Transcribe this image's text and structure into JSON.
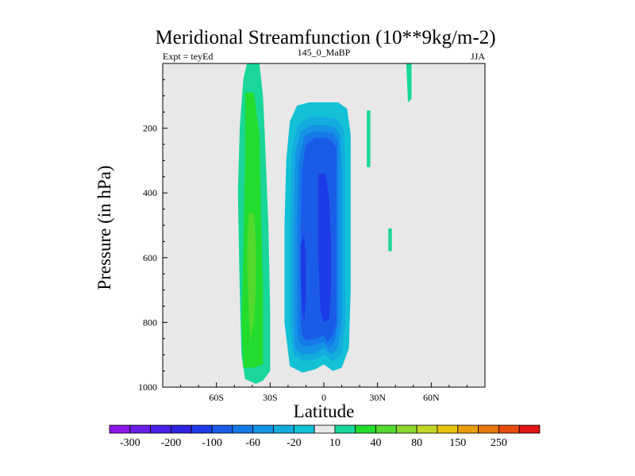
{
  "chart_data": {
    "type": "heatmap",
    "title": "Meridional Streamfunction (10**9kg/m-2)",
    "subtitle_left": "Expt = teyEd",
    "subtitle_center": "145_0_MaBP",
    "subtitle_right": "JJA",
    "xlabel": "Latitude",
    "ylabel": "Pressure (in hPa)",
    "xlim": [
      -90,
      90
    ],
    "ylim": [
      1000,
      0
    ],
    "x_ticks": [
      {
        "value": -60,
        "label": "60S"
      },
      {
        "value": -30,
        "label": "30S"
      },
      {
        "value": 0,
        "label": "0"
      },
      {
        "value": 30,
        "label": "30N"
      },
      {
        "value": 60,
        "label": "60N"
      }
    ],
    "y_ticks": [
      {
        "value": 200,
        "label": "200"
      },
      {
        "value": 400,
        "label": "400"
      },
      {
        "value": 600,
        "label": "600"
      },
      {
        "value": 800,
        "label": "800"
      },
      {
        "value": 1000,
        "label": "1000"
      }
    ],
    "background_color": "#e8e8e8",
    "colorbar": {
      "levels": [
        -350,
        -300,
        -250,
        -200,
        -150,
        -100,
        -80,
        -60,
        -40,
        -20,
        -10,
        10,
        20,
        40,
        60,
        80,
        100,
        150,
        200,
        250,
        300
      ],
      "colors": [
        "#8c17e8",
        "#6a1ee8",
        "#4a1fe6",
        "#2d22e0",
        "#1c3ae6",
        "#1a5ce8",
        "#1679e8",
        "#1493e6",
        "#13acdf",
        "#12c1d6",
        "#e8e8e8",
        "#19d69a",
        "#23dc2e",
        "#54d92e",
        "#8cd62f",
        "#c3d626",
        "#e6c40e",
        "#e89d0c",
        "#e8780c",
        "#e64c0f",
        "#e01414"
      ],
      "labels": [
        {
          "value": -300,
          "label": "-300"
        },
        {
          "value": -200,
          "label": "-200"
        },
        {
          "value": -100,
          "label": "-100"
        },
        {
          "value": -60,
          "label": "-60"
        },
        {
          "value": -20,
          "label": "-20"
        },
        {
          "value": 10,
          "label": "10"
        },
        {
          "value": 40,
          "label": "40"
        },
        {
          "value": 80,
          "label": "80"
        },
        {
          "value": 150,
          "label": "150"
        },
        {
          "value": 250,
          "label": "250"
        }
      ]
    },
    "cells": [
      {
        "name": "sh-cell-10",
        "color_level": 10,
        "points": [
          [
            -43,
            0
          ],
          [
            -36,
            0
          ],
          [
            -34,
            100
          ],
          [
            -33,
            220
          ],
          [
            -31,
            500
          ],
          [
            -30,
            750
          ],
          [
            -30,
            950
          ],
          [
            -34,
            980
          ],
          [
            -38,
            990
          ],
          [
            -44,
            975
          ],
          [
            -46,
            900
          ],
          [
            -47,
            700
          ],
          [
            -48,
            400
          ],
          [
            -47,
            200
          ],
          [
            -45,
            50
          ]
        ]
      },
      {
        "name": "sh-cell-20",
        "color_level": 20,
        "points": [
          [
            -44,
            90
          ],
          [
            -39,
            90
          ],
          [
            -36,
            220
          ],
          [
            -35,
            500
          ],
          [
            -34,
            700
          ],
          [
            -34,
            930
          ],
          [
            -39,
            940
          ],
          [
            -45,
            940
          ],
          [
            -46,
            800
          ],
          [
            -45,
            600
          ],
          [
            -44,
            300
          ]
        ]
      },
      {
        "name": "sh-cell-40",
        "color_level": 40,
        "points": [
          [
            -42,
            460
          ],
          [
            -39,
            465
          ],
          [
            -38,
            560
          ],
          [
            -38,
            690
          ],
          [
            -39,
            795
          ],
          [
            -41,
            860
          ],
          [
            -42,
            770
          ],
          [
            -43,
            600
          ]
        ]
      },
      {
        "name": "ncell-m10",
        "color_level": -10,
        "points": [
          [
            -28,
            950
          ],
          [
            -28,
            700
          ],
          [
            -27,
            500
          ],
          [
            -27,
            300
          ],
          [
            -26,
            180
          ],
          [
            -25,
            100
          ],
          [
            -24,
            40
          ],
          [
            -20,
            50
          ],
          [
            -18,
            110
          ],
          [
            -16,
            60
          ],
          [
            -13,
            20
          ],
          [
            -10,
            10
          ],
          [
            -7,
            30
          ],
          [
            -2,
            20
          ],
          [
            0,
            80
          ],
          [
            3,
            60
          ],
          [
            6,
            30
          ],
          [
            10,
            60
          ],
          [
            13,
            20
          ],
          [
            16,
            10
          ],
          [
            18,
            60
          ],
          [
            17,
            200
          ],
          [
            16,
            400
          ],
          [
            16,
            600
          ],
          [
            16,
            800
          ],
          [
            14,
            930
          ],
          [
            10,
            970
          ],
          [
            5,
            980
          ],
          [
            0,
            960
          ],
          [
            -5,
            970
          ],
          [
            -10,
            990
          ],
          [
            -18,
            995
          ],
          [
            -24,
            985
          ]
        ]
      },
      {
        "name": "ncell-m20",
        "color_level": -20,
        "points": [
          [
            -22,
            800
          ],
          [
            -22,
            500
          ],
          [
            -21,
            300
          ],
          [
            -19,
            180
          ],
          [
            -15,
            130
          ],
          [
            -8,
            120
          ],
          [
            0,
            120
          ],
          [
            8,
            120
          ],
          [
            13,
            140
          ],
          [
            15,
            220
          ],
          [
            15,
            500
          ],
          [
            15,
            700
          ],
          [
            14,
            880
          ],
          [
            10,
            940
          ],
          [
            5,
            950
          ],
          [
            0,
            930
          ],
          [
            -5,
            945
          ],
          [
            -12,
            955
          ],
          [
            -19,
            935
          ]
        ]
      },
      {
        "name": "ncell-m40",
        "color_level": -40,
        "points": [
          [
            -19,
            800
          ],
          [
            -19,
            500
          ],
          [
            -18,
            280
          ],
          [
            -15,
            190
          ],
          [
            -8,
            165
          ],
          [
            0,
            165
          ],
          [
            7,
            170
          ],
          [
            11,
            200
          ],
          [
            12,
            300
          ],
          [
            12,
            600
          ],
          [
            12,
            800
          ],
          [
            10,
            900
          ],
          [
            5,
            920
          ],
          [
            0,
            900
          ],
          [
            -5,
            915
          ],
          [
            -12,
            920
          ],
          [
            -17,
            900
          ]
        ]
      },
      {
        "name": "ncell-m60",
        "color_level": -60,
        "points": [
          [
            -17,
            800
          ],
          [
            -17,
            500
          ],
          [
            -16,
            280
          ],
          [
            -13,
            210
          ],
          [
            -7,
            190
          ],
          [
            0,
            190
          ],
          [
            6,
            195
          ],
          [
            9,
            220
          ],
          [
            10,
            320
          ],
          [
            10,
            600
          ],
          [
            10,
            800
          ],
          [
            8,
            880
          ],
          [
            4,
            900
          ],
          [
            0,
            880
          ],
          [
            -5,
            895
          ],
          [
            -12,
            900
          ],
          [
            -16,
            880
          ]
        ]
      },
      {
        "name": "ncell-m80",
        "color_level": -80,
        "points": [
          [
            -15,
            800
          ],
          [
            -15,
            500
          ],
          [
            -14,
            300
          ],
          [
            -11,
            225
          ],
          [
            -6,
            210
          ],
          [
            0,
            210
          ],
          [
            5,
            215
          ],
          [
            8,
            240
          ],
          [
            8,
            350
          ],
          [
            8,
            600
          ],
          [
            8,
            800
          ],
          [
            6,
            860
          ],
          [
            3,
            880
          ],
          [
            0,
            860
          ],
          [
            -5,
            870
          ],
          [
            -11,
            875
          ],
          [
            -14,
            860
          ]
        ]
      },
      {
        "name": "ncell-m100",
        "color_level": -100,
        "points": [
          [
            -13,
            800
          ],
          [
            -13,
            500
          ],
          [
            -12,
            320
          ],
          [
            -10,
            250
          ],
          [
            -5,
            230
          ],
          [
            0,
            230
          ],
          [
            4,
            235
          ],
          [
            7,
            260
          ],
          [
            7,
            400
          ],
          [
            7,
            600
          ],
          [
            7,
            800
          ],
          [
            5,
            840
          ],
          [
            2,
            860
          ],
          [
            0,
            840
          ],
          [
            -4,
            850
          ],
          [
            -10,
            855
          ],
          [
            -12,
            840
          ]
        ]
      },
      {
        "name": "ncell-m150a",
        "color_level": -150,
        "points": [
          [
            -3,
            340
          ],
          [
            1,
            340
          ],
          [
            3,
            420
          ],
          [
            4,
            560
          ],
          [
            4,
            700
          ],
          [
            3,
            790
          ],
          [
            0,
            800
          ],
          [
            -2,
            760
          ],
          [
            -3,
            600
          ],
          [
            -3,
            450
          ]
        ]
      },
      {
        "name": "ncell-m150b",
        "color_level": -150,
        "points": [
          [
            -13,
            560
          ],
          [
            -11,
            530
          ],
          [
            -10,
            600
          ],
          [
            -10,
            720
          ],
          [
            -11,
            800
          ],
          [
            -12,
            760
          ],
          [
            -13,
            650
          ]
        ]
      },
      {
        "name": "edge-m10-a",
        "color_level": -10,
        "points": [
          [
            24,
            330
          ],
          [
            26,
            330
          ],
          [
            26,
            520
          ],
          [
            24,
            525
          ]
        ]
      },
      {
        "name": "edge-m10-b",
        "color_level": -10,
        "points": [
          [
            36,
            590
          ],
          [
            38,
            590
          ],
          [
            38,
            800
          ],
          [
            36,
            800
          ]
        ]
      },
      {
        "name": "edge-10-a",
        "color_level": 10,
        "points": [
          [
            24,
            145
          ],
          [
            26,
            145
          ],
          [
            26,
            320
          ],
          [
            24,
            320
          ]
        ]
      },
      {
        "name": "edge-10-b",
        "color_level": 10,
        "points": [
          [
            36,
            510
          ],
          [
            38,
            510
          ],
          [
            38,
            580
          ],
          [
            36,
            580
          ]
        ]
      },
      {
        "name": "edge-10-c",
        "color_level": 10,
        "points": [
          [
            46,
            0
          ],
          [
            49,
            0
          ],
          [
            49,
            110
          ],
          [
            47,
            120
          ]
        ]
      }
    ]
  }
}
